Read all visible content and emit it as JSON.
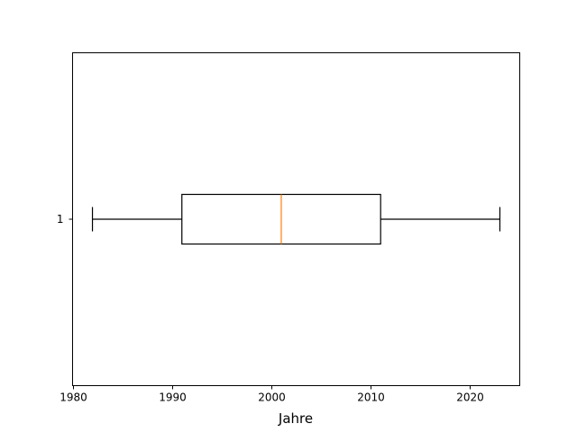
{
  "chart_data": {
    "type": "boxplot",
    "orientation": "horizontal",
    "title": "",
    "xlabel": "Jahre",
    "ylabel": "",
    "xlim": [
      1980,
      2025
    ],
    "xticks": [
      1980,
      1990,
      2000,
      2010,
      2020
    ],
    "xtick_labels": [
      "1980",
      "1990",
      "2000",
      "2010",
      "2020"
    ],
    "grid": false,
    "boxes": [
      {
        "label": "1",
        "whisker_low": 1982,
        "q1": 1991,
        "median": 2001,
        "q3": 2011,
        "whisker_high": 2023
      }
    ],
    "colors": {
      "box": "#000000",
      "median": "#ff7f0e"
    }
  }
}
